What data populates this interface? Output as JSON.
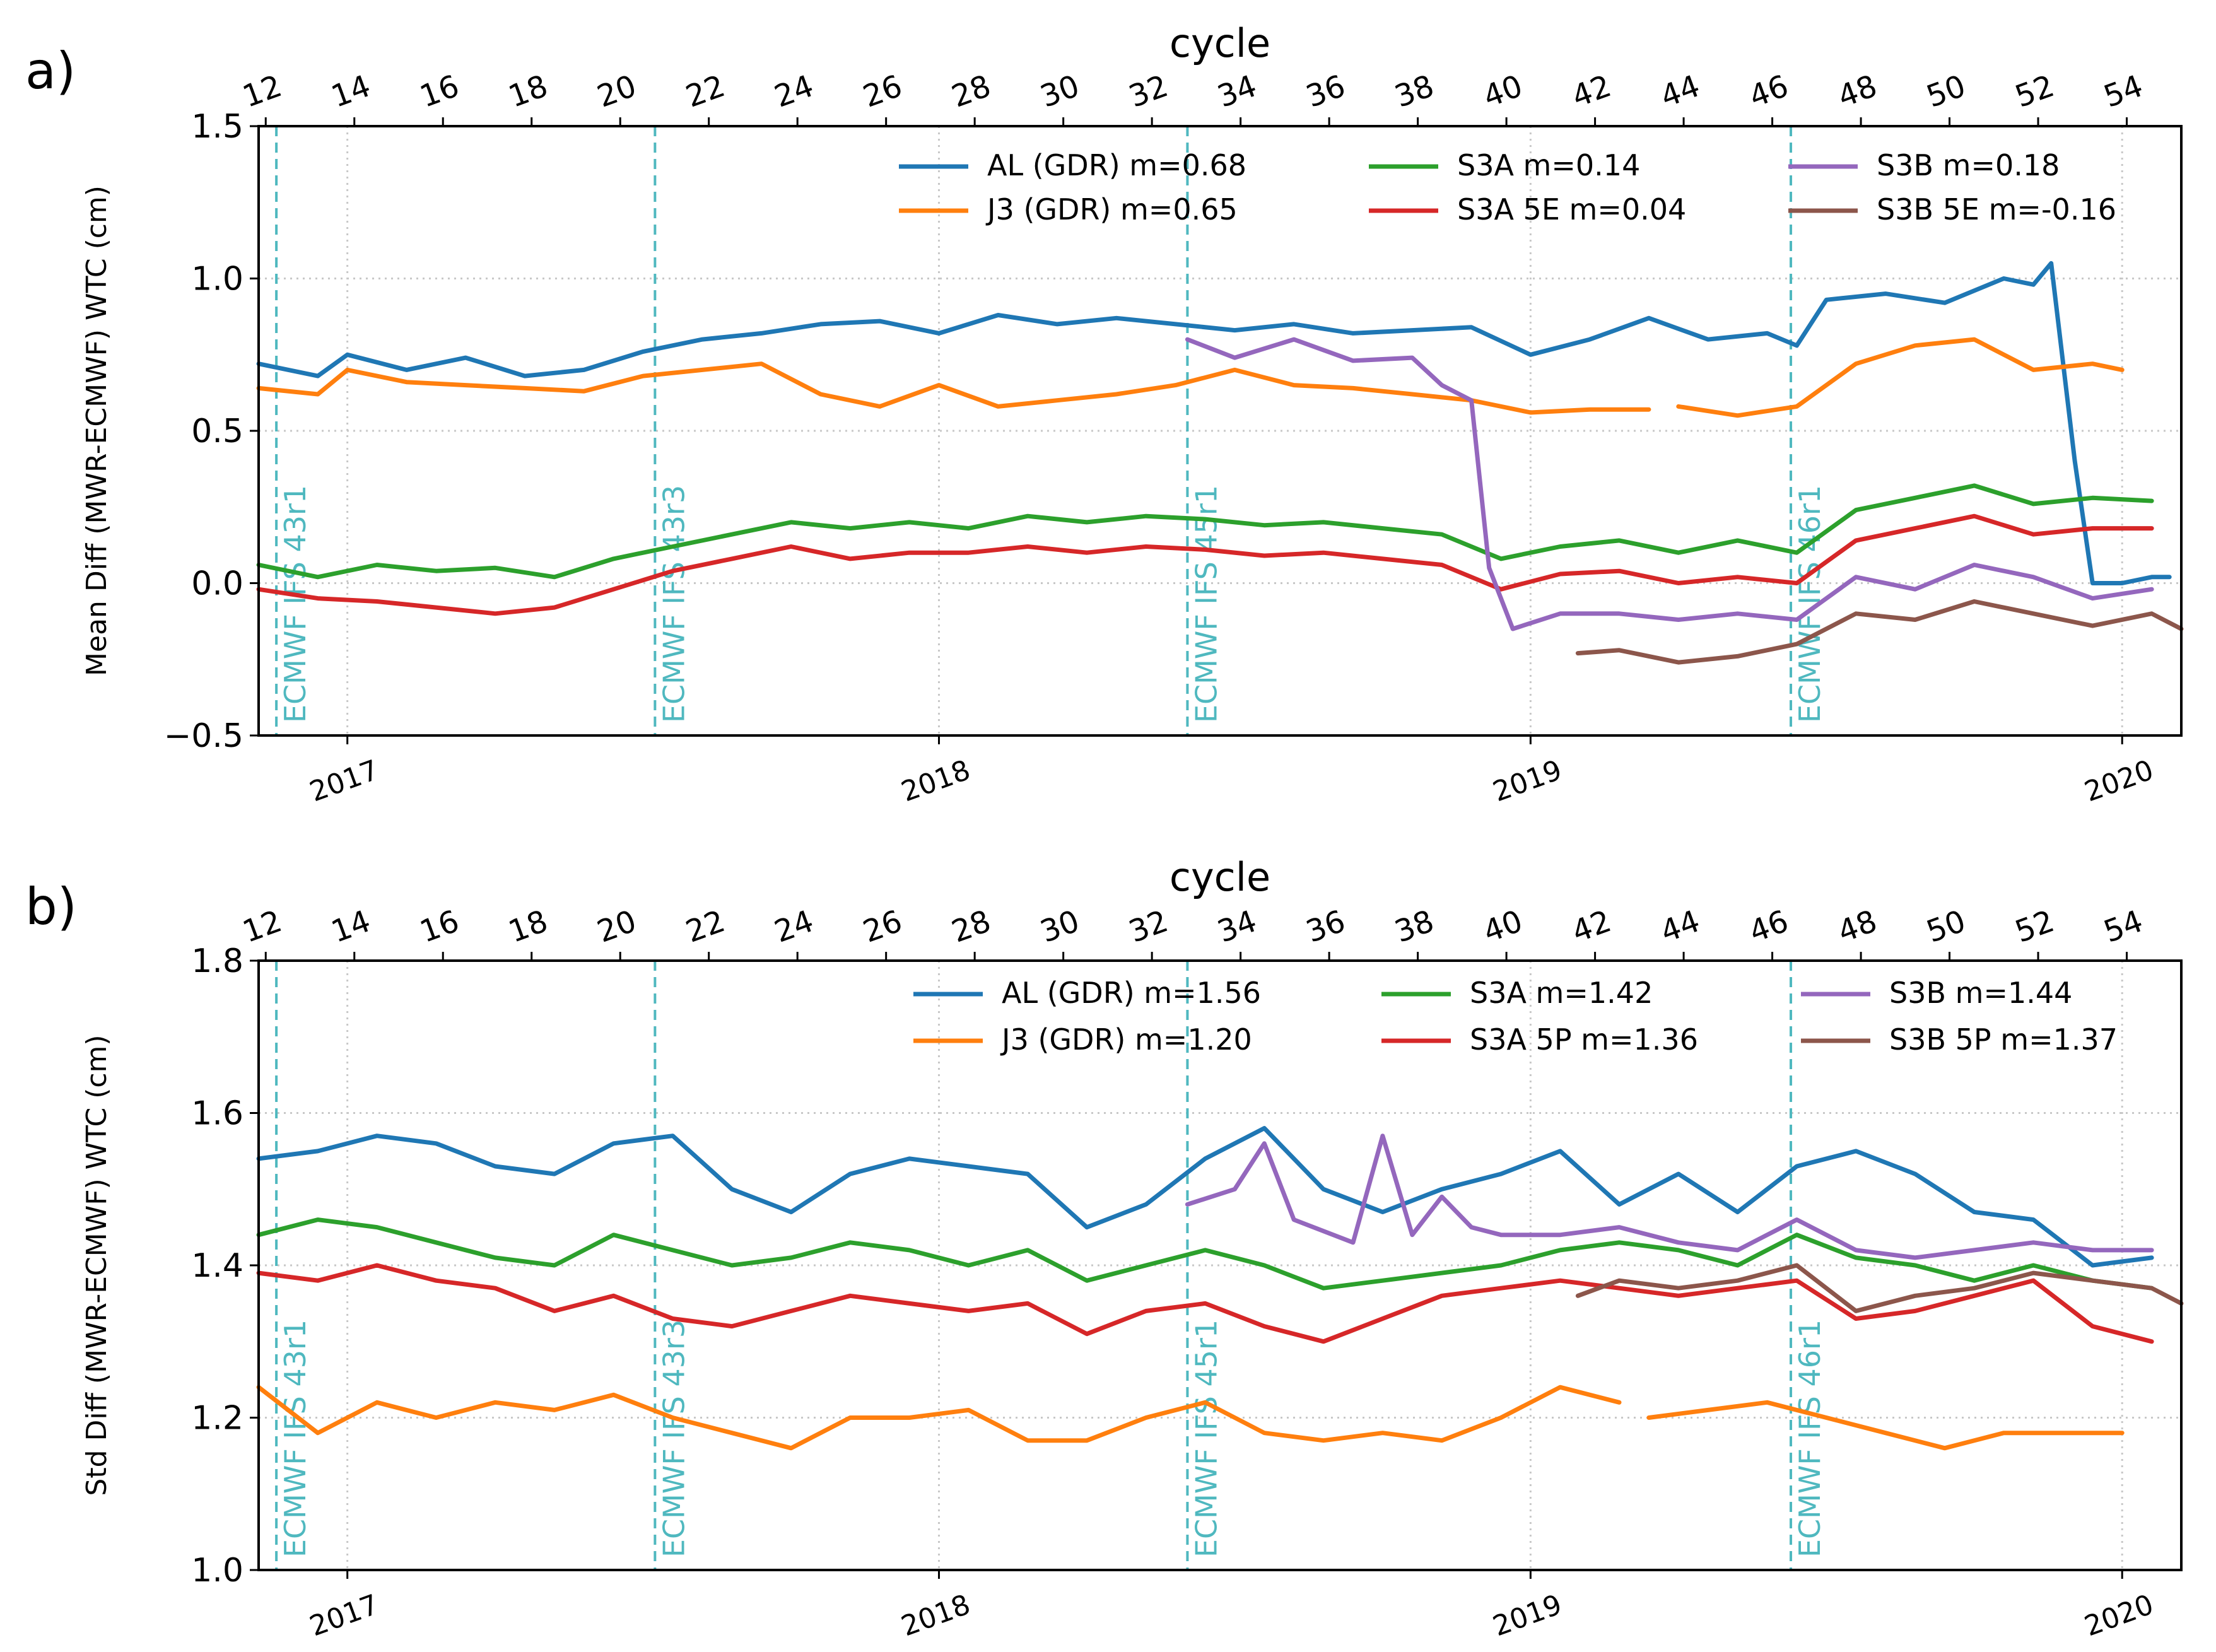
{
  "chart_data": [
    {
      "type": "line",
      "panel_label": "a)",
      "top_axis_label": "cycle",
      "top_axis_ticks": [
        "12",
        "14",
        "16",
        "18",
        "20",
        "22",
        "24",
        "26",
        "28",
        "30",
        "32",
        "34",
        "36",
        "38",
        "40",
        "42",
        "44",
        "46",
        "48",
        "50",
        "52",
        "54"
      ],
      "ylabel": "Mean Diff (MWR-ECMWF) WTC (cm)",
      "ylim": [
        -0.5,
        1.5
      ],
      "yticks": [
        "−0.5",
        "0.0",
        "0.5",
        "1.0",
        "1.5"
      ],
      "xlim": [
        2016.85,
        2020.1
      ],
      "xticks": [
        "2017",
        "2018",
        "2019",
        "2020"
      ],
      "grid": true,
      "legend_position": "top-right",
      "events": [
        {
          "x": 2016.88,
          "label": "ECMWF IFS 43r1"
        },
        {
          "x": 2017.52,
          "label": "ECMWF IFS 43r3"
        },
        {
          "x": 2018.42,
          "label": "ECMWF IFS 45r1"
        },
        {
          "x": 2019.44,
          "label": "ECMWF IFS 46r1"
        }
      ],
      "series": [
        {
          "name": "AL (GDR) m=0.68",
          "color": "#1f77b4",
          "x": [
            2016.85,
            2016.95,
            2017.0,
            2017.1,
            2017.2,
            2017.3,
            2017.4,
            2017.5,
            2017.6,
            2017.7,
            2017.8,
            2017.9,
            2018.0,
            2018.1,
            2018.2,
            2018.3,
            2018.4,
            2018.5,
            2018.6,
            2018.7,
            2018.8,
            2018.9,
            2019.0,
            2019.1,
            2019.2,
            2019.3,
            2019.4,
            2019.45,
            2019.5,
            2019.6,
            2019.7,
            2019.8,
            2019.85,
            2019.88,
            2019.92,
            2019.95,
            2020.0,
            2020.05,
            2020.08
          ],
          "y": [
            0.72,
            0.68,
            0.75,
            0.7,
            0.74,
            0.68,
            0.7,
            0.76,
            0.8,
            0.82,
            0.85,
            0.86,
            0.82,
            0.88,
            0.85,
            0.87,
            0.85,
            0.83,
            0.85,
            0.82,
            0.83,
            0.84,
            0.75,
            0.8,
            0.87,
            0.8,
            0.82,
            0.78,
            0.93,
            0.95,
            0.92,
            1.0,
            0.98,
            1.05,
            0.4,
            0.0,
            0.0,
            0.02,
            0.02
          ]
        },
        {
          "name": "J3 (GDR) m=0.65",
          "color": "#ff7f0e",
          "x": [
            2016.85,
            2016.95,
            2017.0,
            2017.1,
            2017.2,
            2017.3,
            2017.4,
            2017.5,
            2017.6,
            2017.7,
            2017.8,
            2017.9,
            2018.0,
            2018.1,
            2018.2,
            2018.3,
            2018.4,
            2018.5,
            2018.6,
            2018.7,
            2018.8,
            2018.9,
            2019.0,
            2019.1,
            2019.2,
            null,
            2019.25,
            2019.35,
            2019.45,
            2019.55,
            2019.65,
            2019.75,
            2019.85,
            2019.95,
            2020.0
          ],
          "y": [
            0.64,
            0.62,
            0.7,
            0.66,
            0.65,
            0.64,
            0.63,
            0.68,
            0.7,
            0.72,
            0.62,
            0.58,
            0.65,
            0.58,
            0.6,
            0.62,
            0.65,
            0.7,
            0.65,
            0.64,
            0.62,
            0.6,
            0.56,
            0.57,
            0.57,
            null,
            0.58,
            0.55,
            0.58,
            0.72,
            0.78,
            0.8,
            0.7,
            0.72,
            0.7
          ]
        },
        {
          "name": "S3A  m=0.14",
          "color": "#2ca02c",
          "x": [
            2016.85,
            2016.95,
            2017.05,
            2017.15,
            2017.25,
            2017.35,
            2017.45,
            2017.55,
            2017.65,
            2017.75,
            2017.85,
            2017.95,
            2018.05,
            2018.15,
            2018.25,
            2018.35,
            2018.45,
            2018.55,
            2018.65,
            2018.75,
            2018.85,
            2018.95,
            2019.05,
            2019.15,
            2019.25,
            2019.35,
            2019.45,
            2019.55,
            2019.65,
            2019.75,
            2019.85,
            2019.95,
            2020.05
          ],
          "y": [
            0.06,
            0.02,
            0.06,
            0.04,
            0.05,
            0.02,
            0.08,
            0.12,
            0.16,
            0.2,
            0.18,
            0.2,
            0.18,
            0.22,
            0.2,
            0.22,
            0.21,
            0.19,
            0.2,
            0.18,
            0.16,
            0.08,
            0.12,
            0.14,
            0.1,
            0.14,
            0.1,
            0.24,
            0.28,
            0.32,
            0.26,
            0.28,
            0.27
          ]
        },
        {
          "name": "S3A 5E m=0.04",
          "color": "#d62728",
          "x": [
            2016.85,
            2016.95,
            2017.05,
            2017.15,
            2017.25,
            2017.35,
            2017.45,
            2017.55,
            2017.65,
            2017.75,
            2017.85,
            2017.95,
            2018.05,
            2018.15,
            2018.25,
            2018.35,
            2018.45,
            2018.55,
            2018.65,
            2018.75,
            2018.85,
            2018.95,
            2019.05,
            2019.15,
            2019.25,
            2019.35,
            2019.45,
            2019.55,
            2019.65,
            2019.75,
            2019.85,
            2019.95,
            2020.05
          ],
          "y": [
            -0.02,
            -0.05,
            -0.06,
            -0.08,
            -0.1,
            -0.08,
            -0.02,
            0.04,
            0.08,
            0.12,
            0.08,
            0.1,
            0.1,
            0.12,
            0.1,
            0.12,
            0.11,
            0.09,
            0.1,
            0.08,
            0.06,
            -0.02,
            0.03,
            0.04,
            0.0,
            0.02,
            0.0,
            0.14,
            0.18,
            0.22,
            0.16,
            0.18,
            0.18
          ]
        },
        {
          "name": "S3B m=0.18",
          "color": "#9467bd",
          "x": [
            2018.42,
            2018.5,
            2018.6,
            2018.7,
            2018.8,
            2018.85,
            2018.9,
            2018.93,
            2018.97,
            2019.05,
            2019.15,
            2019.25,
            2019.35,
            2019.45,
            2019.55,
            2019.65,
            2019.75,
            2019.85,
            2019.95,
            2020.05
          ],
          "y": [
            0.8,
            0.74,
            0.8,
            0.73,
            0.74,
            0.65,
            0.6,
            0.05,
            -0.15,
            -0.1,
            -0.1,
            -0.12,
            -0.1,
            -0.12,
            0.02,
            -0.02,
            0.06,
            0.02,
            -0.05,
            -0.02
          ]
        },
        {
          "name": "S3B 5E m=-0.16",
          "color": "#8c564b",
          "x": [
            2019.08,
            2019.15,
            2019.25,
            2019.35,
            2019.45,
            2019.55,
            2019.65,
            2019.75,
            2019.85,
            2019.95,
            2020.05,
            2020.1
          ],
          "y": [
            -0.23,
            -0.22,
            -0.26,
            -0.24,
            -0.2,
            -0.1,
            -0.12,
            -0.06,
            -0.1,
            -0.14,
            -0.1,
            -0.15
          ]
        }
      ]
    },
    {
      "type": "line",
      "panel_label": "b)",
      "top_axis_label": "cycle",
      "top_axis_ticks": [
        "12",
        "14",
        "16",
        "18",
        "20",
        "22",
        "24",
        "26",
        "28",
        "30",
        "32",
        "34",
        "36",
        "38",
        "40",
        "42",
        "44",
        "46",
        "48",
        "50",
        "52",
        "54"
      ],
      "ylabel": "Std Diff (MWR-ECMWF) WTC (cm)",
      "ylim": [
        1.0,
        1.8
      ],
      "yticks": [
        "1.0",
        "1.2",
        "1.4",
        "1.6",
        "1.8"
      ],
      "xlim": [
        2016.85,
        2020.1
      ],
      "xticks": [
        "2017",
        "2018",
        "2019",
        "2020"
      ],
      "grid": true,
      "legend_position": "top-right",
      "events": [
        {
          "x": 2016.88,
          "label": "ECMWF IFS 43r1"
        },
        {
          "x": 2017.52,
          "label": "ECMWF IFS 43r3"
        },
        {
          "x": 2018.42,
          "label": "ECMWF IFS 45r1"
        },
        {
          "x": 2019.44,
          "label": "ECMWF IFS 46r1"
        }
      ],
      "series": [
        {
          "name": "AL (GDR) m=1.56",
          "color": "#1f77b4",
          "x": [
            2016.85,
            2016.95,
            2017.05,
            2017.15,
            2017.25,
            2017.35,
            2017.45,
            2017.55,
            2017.65,
            2017.75,
            2017.85,
            2017.95,
            2018.05,
            2018.15,
            2018.25,
            2018.35,
            2018.45,
            2018.55,
            2018.65,
            2018.75,
            2018.85,
            2018.95,
            2019.05,
            2019.15,
            2019.25,
            2019.35,
            2019.45,
            2019.55,
            2019.65,
            2019.75,
            2019.85,
            2019.95,
            2020.05
          ],
          "y": [
            1.54,
            1.55,
            1.57,
            1.56,
            1.53,
            1.52,
            1.56,
            1.57,
            1.5,
            1.47,
            1.52,
            1.54,
            1.53,
            1.52,
            1.45,
            1.48,
            1.54,
            1.58,
            1.5,
            1.47,
            1.5,
            1.52,
            1.55,
            1.48,
            1.52,
            1.47,
            1.53,
            1.55,
            1.52,
            1.47,
            1.46,
            1.4,
            1.41
          ]
        },
        {
          "name": "J3 (GDR) m=1.20",
          "color": "#ff7f0e",
          "x": [
            2016.85,
            2016.95,
            2017.05,
            2017.15,
            2017.25,
            2017.35,
            2017.45,
            2017.55,
            2017.65,
            2017.75,
            2017.85,
            2017.95,
            2018.05,
            2018.15,
            2018.25,
            2018.35,
            2018.45,
            2018.55,
            2018.65,
            2018.75,
            2018.85,
            2018.95,
            2019.05,
            2019.15,
            null,
            2019.2,
            2019.3,
            2019.4,
            2019.5,
            2019.6,
            2019.7,
            2019.8,
            2019.9,
            2020.0
          ],
          "y": [
            1.24,
            1.18,
            1.22,
            1.2,
            1.22,
            1.21,
            1.23,
            1.2,
            1.18,
            1.16,
            1.2,
            1.2,
            1.21,
            1.17,
            1.17,
            1.2,
            1.22,
            1.18,
            1.17,
            1.18,
            1.17,
            1.2,
            1.24,
            1.22,
            null,
            1.2,
            1.21,
            1.22,
            1.2,
            1.18,
            1.16,
            1.18,
            1.18,
            1.18
          ]
        },
        {
          "name": "S3A  m=1.42",
          "color": "#2ca02c",
          "x": [
            2016.85,
            2016.95,
            2017.05,
            2017.15,
            2017.25,
            2017.35,
            2017.45,
            2017.55,
            2017.65,
            2017.75,
            2017.85,
            2017.95,
            2018.05,
            2018.15,
            2018.25,
            2018.35,
            2018.45,
            2018.55,
            2018.65,
            2018.75,
            2018.85,
            2018.95,
            2019.05,
            2019.15,
            2019.25,
            2019.35,
            2019.45,
            2019.55,
            2019.65,
            2019.75,
            2019.85,
            2019.95,
            2020.05
          ],
          "y": [
            1.44,
            1.46,
            1.45,
            1.43,
            1.41,
            1.4,
            1.44,
            1.42,
            1.4,
            1.41,
            1.43,
            1.42,
            1.4,
            1.42,
            1.38,
            1.4,
            1.42,
            1.4,
            1.37,
            1.38,
            1.39,
            1.4,
            1.42,
            1.43,
            1.42,
            1.4,
            1.44,
            1.41,
            1.4,
            1.38,
            1.4,
            1.38,
            1.37
          ]
        },
        {
          "name": "S3A 5P m=1.36",
          "color": "#d62728",
          "x": [
            2016.85,
            2016.95,
            2017.05,
            2017.15,
            2017.25,
            2017.35,
            2017.45,
            2017.55,
            2017.65,
            2017.75,
            2017.85,
            2017.95,
            2018.05,
            2018.15,
            2018.25,
            2018.35,
            2018.45,
            2018.55,
            2018.65,
            2018.75,
            2018.85,
            2018.95,
            2019.05,
            2019.15,
            2019.25,
            2019.35,
            2019.45,
            2019.55,
            2019.65,
            2019.75,
            2019.85,
            2019.95,
            2020.05
          ],
          "y": [
            1.39,
            1.38,
            1.4,
            1.38,
            1.37,
            1.34,
            1.36,
            1.33,
            1.32,
            1.34,
            1.36,
            1.35,
            1.34,
            1.35,
            1.31,
            1.34,
            1.35,
            1.32,
            1.3,
            1.33,
            1.36,
            1.37,
            1.38,
            1.37,
            1.36,
            1.37,
            1.38,
            1.33,
            1.34,
            1.36,
            1.38,
            1.32,
            1.3
          ]
        },
        {
          "name": "S3B  m=1.44",
          "color": "#9467bd",
          "x": [
            2018.42,
            2018.5,
            2018.55,
            2018.6,
            2018.7,
            2018.75,
            2018.8,
            2018.85,
            2018.9,
            2018.95,
            2019.05,
            2019.15,
            2019.25,
            2019.35,
            2019.45,
            2019.55,
            2019.65,
            2019.75,
            2019.85,
            2019.95,
            2020.05
          ],
          "y": [
            1.48,
            1.5,
            1.56,
            1.46,
            1.43,
            1.57,
            1.44,
            1.49,
            1.45,
            1.44,
            1.44,
            1.45,
            1.43,
            1.42,
            1.46,
            1.42,
            1.41,
            1.42,
            1.43,
            1.42,
            1.42
          ]
        },
        {
          "name": "S3B 5P m=1.37",
          "color": "#8c564b",
          "x": [
            2019.08,
            2019.15,
            2019.25,
            2019.35,
            2019.45,
            2019.55,
            2019.65,
            2019.75,
            2019.85,
            2019.95,
            2020.05,
            2020.1
          ],
          "y": [
            1.36,
            1.38,
            1.37,
            1.38,
            1.4,
            1.34,
            1.36,
            1.37,
            1.39,
            1.38,
            1.37,
            1.35
          ]
        }
      ]
    }
  ]
}
